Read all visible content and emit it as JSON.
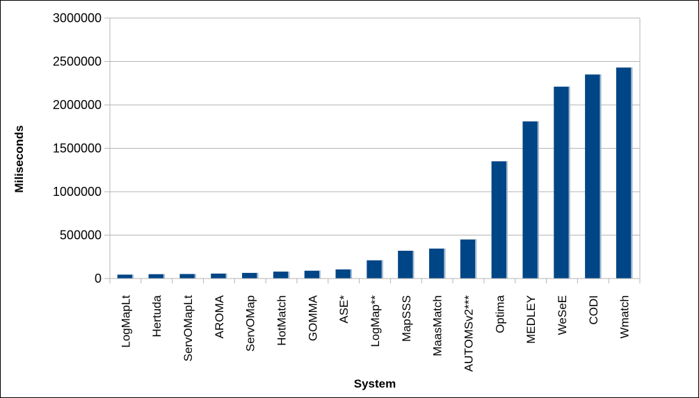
{
  "chart_data": {
    "type": "bar",
    "title": "",
    "xlabel": "System",
    "ylabel": "Miliseconds",
    "ylim": [
      0,
      3000000
    ],
    "yticks": [
      0,
      500000,
      1000000,
      1500000,
      2000000,
      2500000,
      3000000
    ],
    "grid": true,
    "legend": "none",
    "bar_color": "#004586",
    "categories": [
      "LogMapLt",
      "Hertuda",
      "ServOMapLt",
      "AROMA",
      "ServOMap",
      "HotMatch",
      "GOMMA",
      "ASE*",
      "LogMap**",
      "MapSSS",
      "MaasMatch",
      "AUTOMSv2***",
      "Optima",
      "MEDLEY",
      "WeSeE",
      "CODI",
      "Wmatch"
    ],
    "values": [
      45000,
      50000,
      52000,
      57000,
      65000,
      80000,
      90000,
      105000,
      210000,
      320000,
      345000,
      450000,
      1350000,
      1810000,
      2210000,
      2350000,
      2430000
    ]
  }
}
